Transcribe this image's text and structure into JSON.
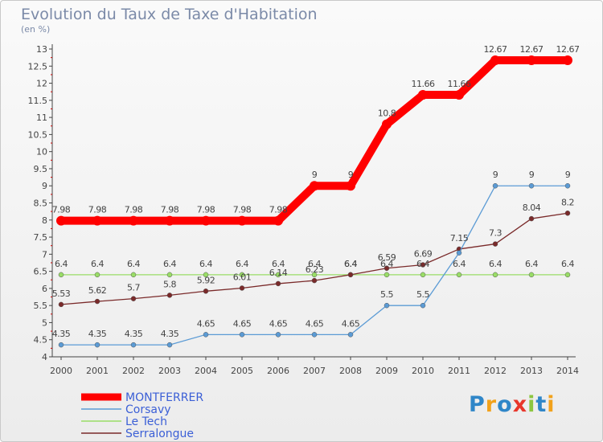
{
  "header": {
    "title": "Evolution du Taux de Taxe d'Habitation",
    "subtitle": "(en %)"
  },
  "logo": {
    "text": "Proxiti",
    "colors": [
      "#2f86c8",
      "#f2a21b",
      "#2f86c8",
      "#e8362b",
      "#8cc63f",
      "#2f86c8",
      "#f2a21b"
    ]
  },
  "chart_data": {
    "type": "line",
    "x": [
      "2000",
      "2001",
      "2002",
      "2003",
      "2004",
      "2005",
      "2006",
      "2007",
      "2008",
      "2009",
      "2010",
      "2011",
      "2012",
      "2013",
      "2014"
    ],
    "ylim": [
      4,
      13
    ],
    "yticks": [
      4,
      4.5,
      5,
      5.5,
      6,
      6.5,
      7,
      7.5,
      8,
      8.5,
      9,
      9.5,
      10,
      10.5,
      11,
      11.5,
      12,
      12.5,
      13
    ],
    "ytick_labels": [
      "4",
      "4.5",
      "5",
      "5.5",
      "6",
      "6.5",
      "7",
      "7.5",
      "8",
      "8.5",
      "9",
      "9.5",
      "10",
      "10.5",
      "11",
      "11.5",
      "12",
      "12.5",
      "13"
    ],
    "grid": false,
    "legend_position": "bottom-left",
    "series": [
      {
        "name": "MONTFERRER",
        "color": "#ff0000",
        "values": [
          7.98,
          7.98,
          7.98,
          7.98,
          7.98,
          7.98,
          7.98,
          9,
          9,
          10.8,
          11.66,
          11.66,
          12.67,
          12.67,
          12.67
        ],
        "labels": [
          "7.98",
          "7.98",
          "7.98",
          "7.98",
          "7.98",
          "7.98",
          "7.98",
          "9",
          "9",
          "10.8",
          "11.66",
          "11.66",
          "12.67",
          "12.67",
          "12.67"
        ]
      },
      {
        "name": "Corsavy",
        "color": "#5b9bd5",
        "values": [
          4.35,
          4.35,
          4.35,
          4.35,
          4.65,
          4.65,
          4.65,
          4.65,
          4.65,
          5.5,
          5.5,
          7.04,
          9,
          9,
          9
        ],
        "labels": [
          "4.35",
          "4.35",
          "4.35",
          "4.35",
          "4.65",
          "4.65",
          "4.65",
          "4.65",
          "4.65",
          "5.5",
          "5.5",
          "",
          "9",
          "9",
          "9"
        ]
      },
      {
        "name": "Le Tech",
        "color": "#99dd66",
        "values": [
          6.4,
          6.4,
          6.4,
          6.4,
          6.4,
          6.4,
          6.4,
          6.4,
          6.4,
          6.4,
          6.4,
          6.4,
          6.4,
          6.4,
          6.4
        ],
        "labels": [
          "6.4",
          "6.4",
          "6.4",
          "6.4",
          "6.4",
          "6.4",
          "6.4",
          "6.4",
          "6.4",
          "6.4",
          "6.4",
          "6.4",
          "6.4",
          "6.4",
          "6.4"
        ]
      },
      {
        "name": "Serralongue",
        "color": "#7a2a2a",
        "values": [
          5.53,
          5.62,
          5.7,
          5.8,
          5.92,
          6.01,
          6.14,
          6.23,
          6.4,
          6.59,
          6.69,
          7.15,
          7.3,
          8.04,
          8.2
        ],
        "labels": [
          "5.53",
          "5.62",
          "5.7",
          "5.8",
          "5.92",
          "6.01",
          "6.14",
          "6.23",
          "6.4",
          "6.59",
          "6.69",
          "7.15",
          "7.3",
          "8.04",
          "8.2"
        ]
      }
    ]
  }
}
